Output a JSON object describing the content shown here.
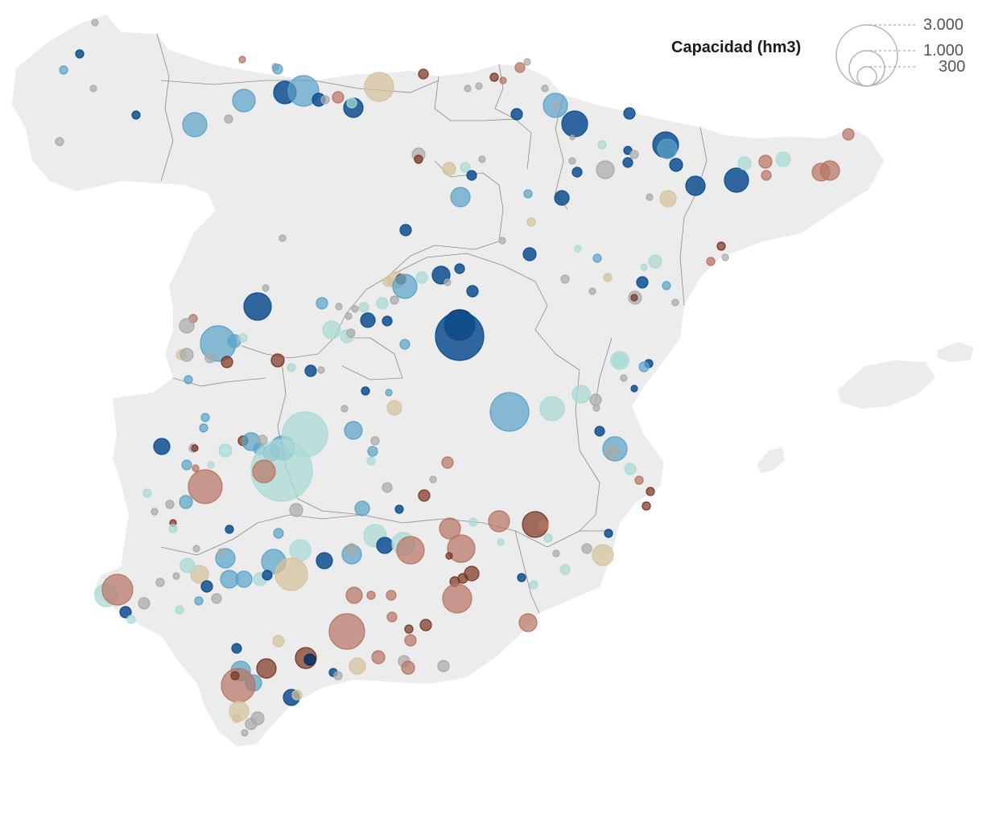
{
  "legend": {
    "title": "Capacidad (hm3)",
    "sizes": [
      {
        "label": "3.000",
        "value": 3000
      },
      {
        "label": "1.000",
        "value": 1000
      },
      {
        "label": "300",
        "value": 300
      }
    ]
  },
  "colors": {
    "land": "#ececec",
    "borders": "#8a8a8a",
    "fill_levels": [
      "#7a3520",
      "#b87463",
      "#d6c29a",
      "#a9a9a9",
      "#a8dad5",
      "#5aa2c7",
      "#0e4f8f",
      "#062e63"
    ]
  },
  "reservoir_categories": [
    "dark-brown",
    "brown",
    "tan",
    "grey",
    "light-teal",
    "light-blue",
    "blue",
    "navy"
  ]
}
